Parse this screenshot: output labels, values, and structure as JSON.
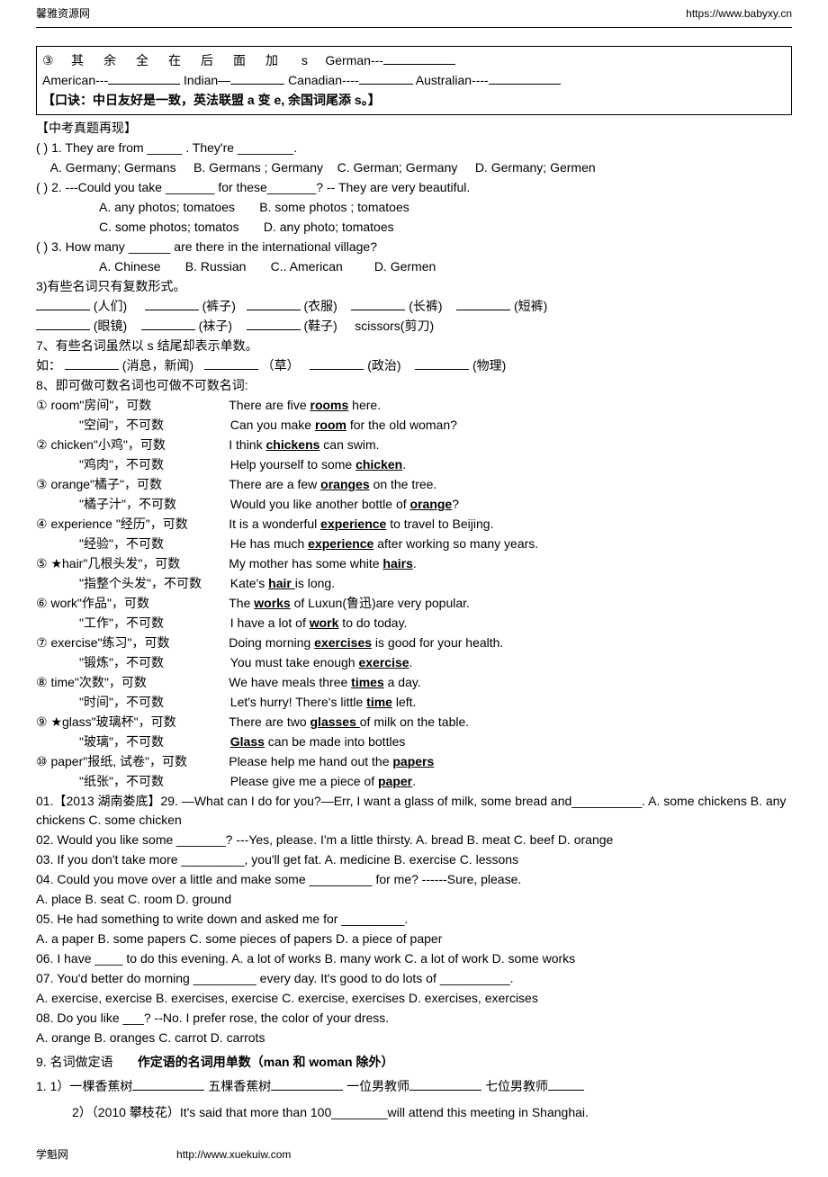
{
  "header": {
    "left": "馨雅资源网",
    "right": "https://www.babyxy.cn"
  },
  "box": {
    "line1_prefix": "③",
    "line1_spread": "其余全在后面加",
    "line1_s": "s",
    "line1_german": "German---",
    "line2": {
      "american": "American---",
      "indian": "Indian—",
      "canadian": "Canadian----",
      "australian": "Australian----"
    },
    "mnemonic": "【口诀：中日友好是一致，英法联盟 a 变 e, 余国词尾添 s。】"
  },
  "sec1_title": "【中考真题再现】",
  "q1": {
    "stem": "(     ) 1. They are from _____ . They're ________.",
    "a": "A. Germany; Germans",
    "b": "B. Germans ; Germany",
    "c": "C. German; Germany",
    "d": "D. Germany; Germen"
  },
  "q2": {
    "stem": "(     ) 2. ---Could you take _______ for these_______?   -- They are very beautiful.",
    "a": "A. any photos; tomatoes",
    "b": "B. some photos ; tomatoes",
    "c": "C. some photos; tomatos",
    "d": "D. any photo; tomatoes"
  },
  "q3": {
    "stem": "(     ) 3. How many ______ are there in the international village?",
    "a": "A. Chinese",
    "b": "B. Russian",
    "c": "C.. American",
    "d": "D. Germen"
  },
  "sec3_title": "3)有些名词只有复数形式。",
  "plural_row1": {
    "a": "(人们)",
    "b": "(裤子)",
    "c": "(衣服)",
    "d": "(长裤)",
    "e": "(短裤)"
  },
  "plural_row2": {
    "a": "(眼镜)",
    "b": "(袜子)",
    "c": "(鞋子)",
    "d": "scissors(剪刀)"
  },
  "sec7_title": "7、有些名词虽然以 s 结尾却表示单数。",
  "sec7_ex": "如：",
  "sec7_row": {
    "a": "(消息，新闻)",
    "b": "（草）",
    "c": "(政治)",
    "d": "(物理)"
  },
  "sec8_title": "8、即可做可数名词也可做不可数名词:",
  "items": [
    {
      "n": "①",
      "w": "room\"房间\"，可数",
      "ex": "There are five ",
      "u": "rooms",
      "tail": " here.",
      "w2": "\"空间\"，不可数",
      "ex2": "Can you make ",
      "u2": "room",
      "tail2": " for the old woman?"
    },
    {
      "n": "②",
      "w": "chicken\"小鸡\"，可数",
      "ex": "I think ",
      "u": "chickens",
      "tail": " can swim.",
      "w2": "\"鸡肉\"，不可数",
      "ex2": "Help yourself to some ",
      "u2": "chicken",
      "tail2": "."
    },
    {
      "n": "③",
      "w": "orange\"橘子\"，可数",
      "ex": "There are a few ",
      "u": "oranges",
      "tail": " on the tree.",
      "w2": "\"橘子汁\"，不可数",
      "ex2": "Would you like another bottle of ",
      "u2": "orange",
      "tail2": "?"
    },
    {
      "n": "④",
      "w": "experience \"经历\"，可数",
      "ex": "It is a wonderful ",
      "u": "experience",
      "tail": " to travel to Beijing.",
      "w2": "\"经验\"，不可数",
      "ex2": "He has much ",
      "u2": "experience",
      "tail2": " after working so many years."
    },
    {
      "n": "⑤",
      "w": "★hair\"几根头发\"，可数",
      "ex": "My mother has some white ",
      "u": "hairs",
      "tail": ".",
      "w2": "\"指整个头发\"，不可数",
      "ex2": "Kate's ",
      "u2": "hair ",
      "tail2": "is long."
    },
    {
      "n": "⑥",
      "w": "work\"作品\"，可数",
      "ex": "The ",
      "u": "works",
      "tail": " of Luxun(鲁迅)are very popular.",
      "w2": "\"工作\"，不可数",
      "ex2": "I have a lot of ",
      "u2": "work",
      "tail2": " to do today."
    },
    {
      "n": "⑦",
      "w": "exercise\"练习\"，可数",
      "ex": "Doing morning ",
      "u": "exercises",
      "tail": " is good for your health.",
      "w2": "\"锻炼\"，不可数",
      "ex2": "You must take enough ",
      "u2": "exercise",
      "tail2": "."
    },
    {
      "n": "⑧",
      "w": "time\"次数\"，可数",
      "ex": "We have meals three ",
      "u": "times",
      "tail": " a day.",
      "w2": "\"时间\"，不可数",
      "ex2": "Let's hurry! There's little ",
      "u2": "time",
      "tail2": " left."
    },
    {
      "n": "⑨",
      "w": "★glass\"玻璃杯\"，可数",
      "ex": "There are two ",
      "u": "glasses ",
      "tail": "of milk on the table.",
      "w2": "\"玻璃\"，不可数",
      "ex2": "",
      "u2": "Glass",
      "tail2": " can be made into bottles"
    },
    {
      "n": "⑩",
      "w": "paper\"报纸, 试卷\"，可数",
      "ex": "Please help me hand out the ",
      "u": "papers",
      "tail": "",
      "w2": "\"纸张\"，不可数",
      "ex2": "Please give me a piece of ",
      "u2": "paper",
      "tail2": "."
    }
  ],
  "ex01": "01.【2013 湖南娄底】29. —What can I do for you?—Err, I want a glass of milk, some bread and__________.            A. some chickens          B. any chickens           C. some chicken",
  "ex02": "02. Would you like some _______? ---Yes, please. I'm a little thirsty. A. bread B. meat C. beef D. orange",
  "ex03": "03. If you don't take more _________, you'll get fat.            A. medicine B. exercise C. lessons",
  "ex04": "04. Could you move over a little and make some _________ for me? ------Sure, please.",
  "ex04opts": "A. place        B. seat       C. room        D. ground",
  "ex05": "05. He had something to write down and asked me for _________.",
  "ex05opts": "A. a paper      B. some papers      C. some pieces of papers      D. a piece of paper",
  "ex06": "06. I have ____ to do this evening. A. a lot of works   B. many work   C. a lot of work   D. some works",
  "ex07": "07. You'd better do morning _________ every day. It's good to do lots of __________.",
  "ex07opts": "A. exercise, exercise    B. exercises, exercise   C. exercise, exercises   D. exercises, exercises",
  "ex08": "08. Do you like ___? --No. I prefer rose, the color of your dress.",
  "ex08opts": "       A. orange B. oranges C. carrot D. carrots",
  "sec9": {
    "title_a": "9. 名词做定语",
    "title_b": "作定语的名词用单数（man 和 woman 除外）",
    "r1a": "1. 1）一棵香蕉树",
    "r1b": "五棵香蕉树",
    "r1c": "一位男教师",
    "r1d": "七位男教师",
    "r2": "2）（2010 攀枝花）It's said that more than 100________will attend this meeting in Shanghai."
  },
  "footer": {
    "left": "学魁网",
    "right": "http://www.xuekuiw.com"
  }
}
